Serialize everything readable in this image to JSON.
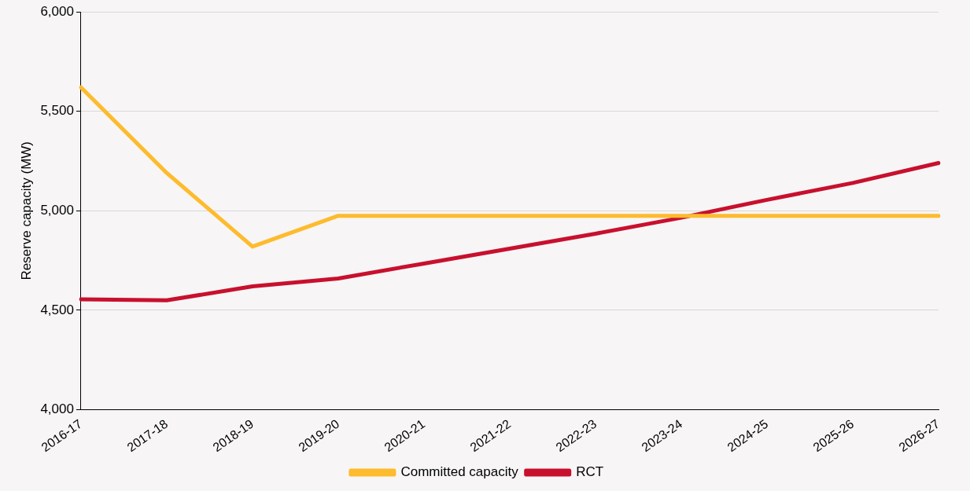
{
  "chart_data": {
    "type": "line",
    "ylabel": "Reserve capacity (MW)",
    "categories": [
      "2016-17",
      "2017-18",
      "2018-19",
      "2019-20",
      "2020-21",
      "2021-22",
      "2022-23",
      "2023-24",
      "2024-25",
      "2025-26",
      "2026-27"
    ],
    "series": [
      {
        "name": "Committed capacity",
        "color": "#fdbb2d",
        "values": [
          5620,
          5190,
          4820,
          4975,
          4975,
          4975,
          4975,
          4975,
          4975,
          4975,
          4975
        ]
      },
      {
        "name": "RCT",
        "color": "#c8102e",
        "values": [
          4555,
          4550,
          4620,
          4660,
          4735,
          4810,
          4885,
          4965,
          5055,
          5140,
          5240
        ]
      }
    ],
    "ylim": [
      4000,
      6000
    ],
    "yticks": [
      {
        "value": 4000,
        "label": "4,000"
      },
      {
        "value": 4500,
        "label": "4,500"
      },
      {
        "value": 5000,
        "label": "5,000"
      },
      {
        "value": 5500,
        "label": "5,500"
      },
      {
        "value": 6000,
        "label": "6,000"
      }
    ],
    "grid": "y",
    "legend": "bottom",
    "marker": "none",
    "line_style": "solid"
  }
}
